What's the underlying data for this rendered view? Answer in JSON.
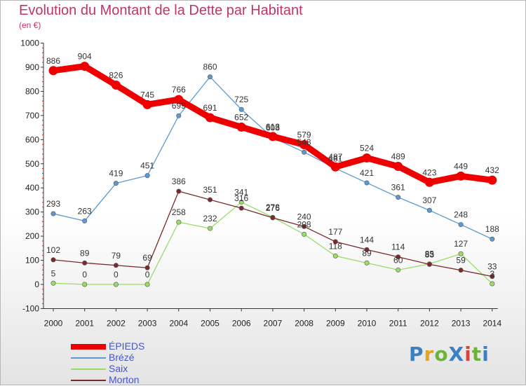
{
  "title": "Evolution du Montant de la Dette par Habitant",
  "subtitle": "(en €)",
  "logo": {
    "text": "ProXiti",
    "colors": [
      "#3b7fc4",
      "#e8a31e",
      "#6fb23a",
      "#3b7fc4",
      "#d6453d",
      "#6fb23a",
      "#3b7fc4"
    ]
  },
  "chart_data": {
    "type": "line",
    "x": [
      "2000",
      "2001",
      "2002",
      "2003",
      "2004",
      "2005",
      "2006",
      "2007",
      "2008",
      "2009",
      "2010",
      "2011",
      "2012",
      "2013",
      "2014"
    ],
    "y_ticks": [
      "-100",
      "0",
      "100",
      "200",
      "300",
      "400",
      "500",
      "600",
      "700",
      "800",
      "900",
      "1000"
    ],
    "ylim": [
      -100,
      1000
    ],
    "grid": false,
    "legend_position": "bottom-left",
    "series": [
      {
        "name": "ÉPIEDS",
        "color": "#ee0000",
        "values": [
          886,
          904,
          826,
          745,
          766,
          691,
          652,
          613,
          579,
          487,
          524,
          489,
          423,
          449,
          432
        ]
      },
      {
        "name": "Brézé",
        "color": "#5b9bd5",
        "values": [
          293,
          263,
          419,
          451,
          699,
          860,
          725,
          608,
          548,
          481,
          421,
          361,
          307,
          248,
          188
        ]
      },
      {
        "name": "Saix",
        "color": "#99dd66",
        "values": [
          5,
          0,
          0,
          0,
          258,
          232,
          341,
          278,
          208,
          118,
          89,
          60,
          85,
          127,
          3
        ]
      },
      {
        "name": "Morton",
        "color": "#7a2a2a",
        "values": [
          102,
          89,
          79,
          69,
          386,
          351,
          316,
          276,
          240,
          177,
          144,
          114,
          83,
          59,
          33
        ]
      }
    ]
  }
}
